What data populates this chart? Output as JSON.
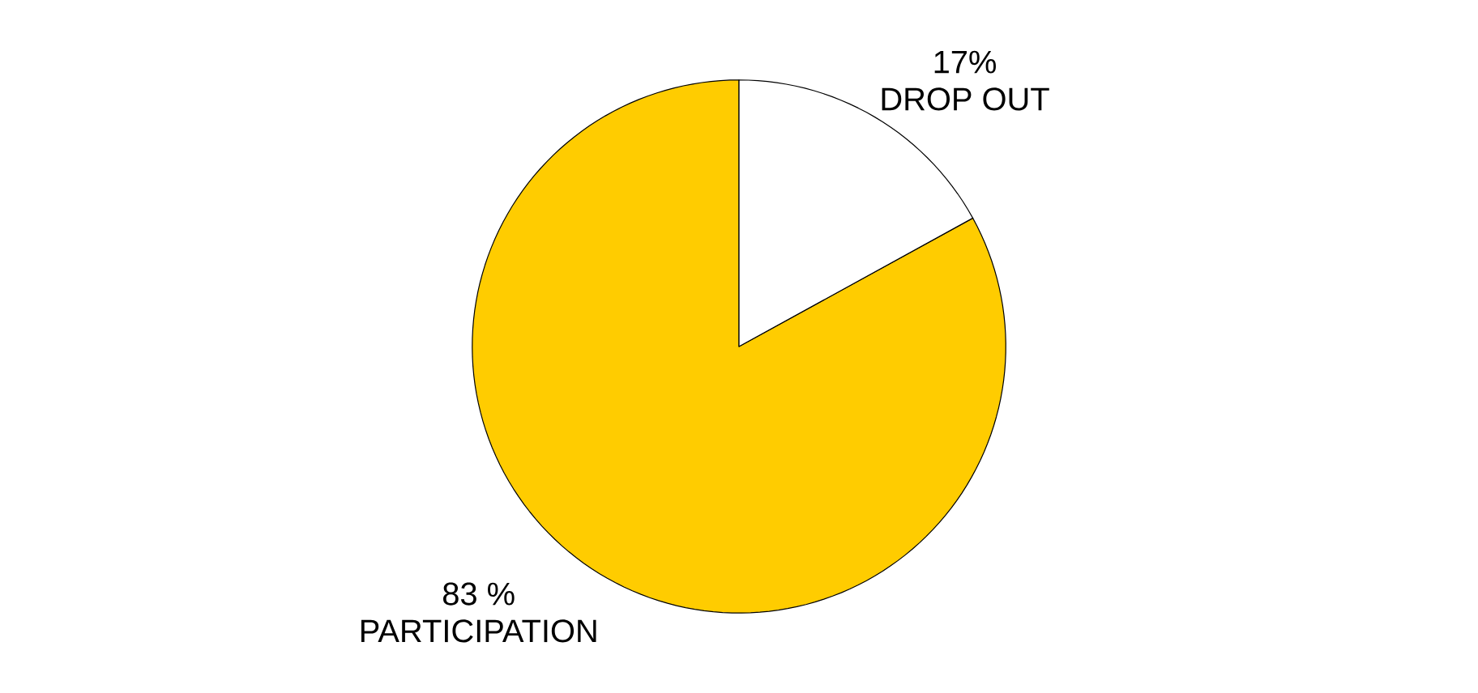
{
  "chart_data": {
    "type": "pie",
    "categories": [
      "PARTICIPATION",
      "DROP OUT"
    ],
    "values": [
      83,
      17
    ],
    "value_labels": [
      "83 %",
      "17%"
    ],
    "colors": [
      "#ffcc00",
      "#ffffff"
    ]
  }
}
